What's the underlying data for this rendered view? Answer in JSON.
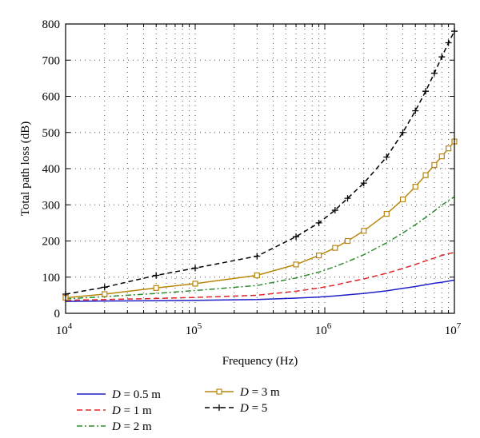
{
  "chart_data": {
    "type": "line",
    "title": "",
    "xlabel": "Frequency (Hz)",
    "ylabel": "Total path loss (dB)",
    "xscale": "log",
    "xlim": [
      10000,
      10000000
    ],
    "ylim": [
      0,
      800
    ],
    "grid": "dotted",
    "legend_placement": "bottom",
    "x_ticks": [
      {
        "value": 10000,
        "base": "10",
        "exp": "4"
      },
      {
        "value": 100000,
        "base": "10",
        "exp": "5"
      },
      {
        "value": 1000000,
        "base": "10",
        "exp": "6"
      },
      {
        "value": 10000000,
        "base": "10",
        "exp": "7"
      }
    ],
    "y_ticks": [
      0,
      100,
      200,
      300,
      400,
      500,
      600,
      700,
      800
    ],
    "x": [
      10000,
      20000,
      50000,
      100000,
      300000,
      600000,
      900000,
      1200000,
      1500000,
      2000000,
      3000000,
      4000000,
      5000000,
      6000000,
      7000000,
      8000000,
      9000000,
      10000000
    ],
    "series": [
      {
        "name": "D = 0.5 m",
        "var": "D",
        "rest": " = 0.5 m",
        "color": "#1f1fc8",
        "dash": "",
        "marker": "none",
        "values": [
          33,
          34,
          35,
          36,
          38,
          42,
          45,
          48,
          51,
          55,
          62,
          69,
          74,
          79,
          83,
          86,
          89,
          92
        ]
      },
      {
        "name": "D = 1 m",
        "var": "D",
        "rest": " = 1 m",
        "color": "#e0262b",
        "dash": "7,4",
        "marker": "none",
        "values": [
          36,
          38,
          41,
          44,
          50,
          61,
          70,
          78,
          86,
          95,
          111,
          124,
          135,
          145,
          153,
          160,
          165,
          168
        ]
      },
      {
        "name": "D = 2 m",
        "var": "D",
        "rest": " = 2 m",
        "color": "#2e8b2e",
        "dash": "7,3,2,3",
        "marker": "none",
        "values": [
          40,
          46,
          55,
          63,
          77,
          98,
          114,
          129,
          143,
          162,
          195,
          222,
          245,
          265,
          283,
          299,
          312,
          322
        ]
      },
      {
        "name": "D = 3 m",
        "var": "D",
        "rest": " = 3 m",
        "color": "#b8860b",
        "dash": "",
        "marker": "square",
        "values": [
          43,
          53,
          70,
          82,
          105,
          135,
          160,
          181,
          200,
          228,
          275,
          315,
          350,
          382,
          410,
          434,
          456,
          475
        ]
      },
      {
        "name": "D = 5",
        "var": "D",
        "rest": " = 5",
        "color": "#000000",
        "dash": "6,4",
        "marker": "plus",
        "values": [
          53,
          72,
          105,
          125,
          158,
          212,
          250,
          285,
          318,
          360,
          432,
          500,
          560,
          614,
          664,
          709,
          748,
          780
        ]
      }
    ]
  }
}
